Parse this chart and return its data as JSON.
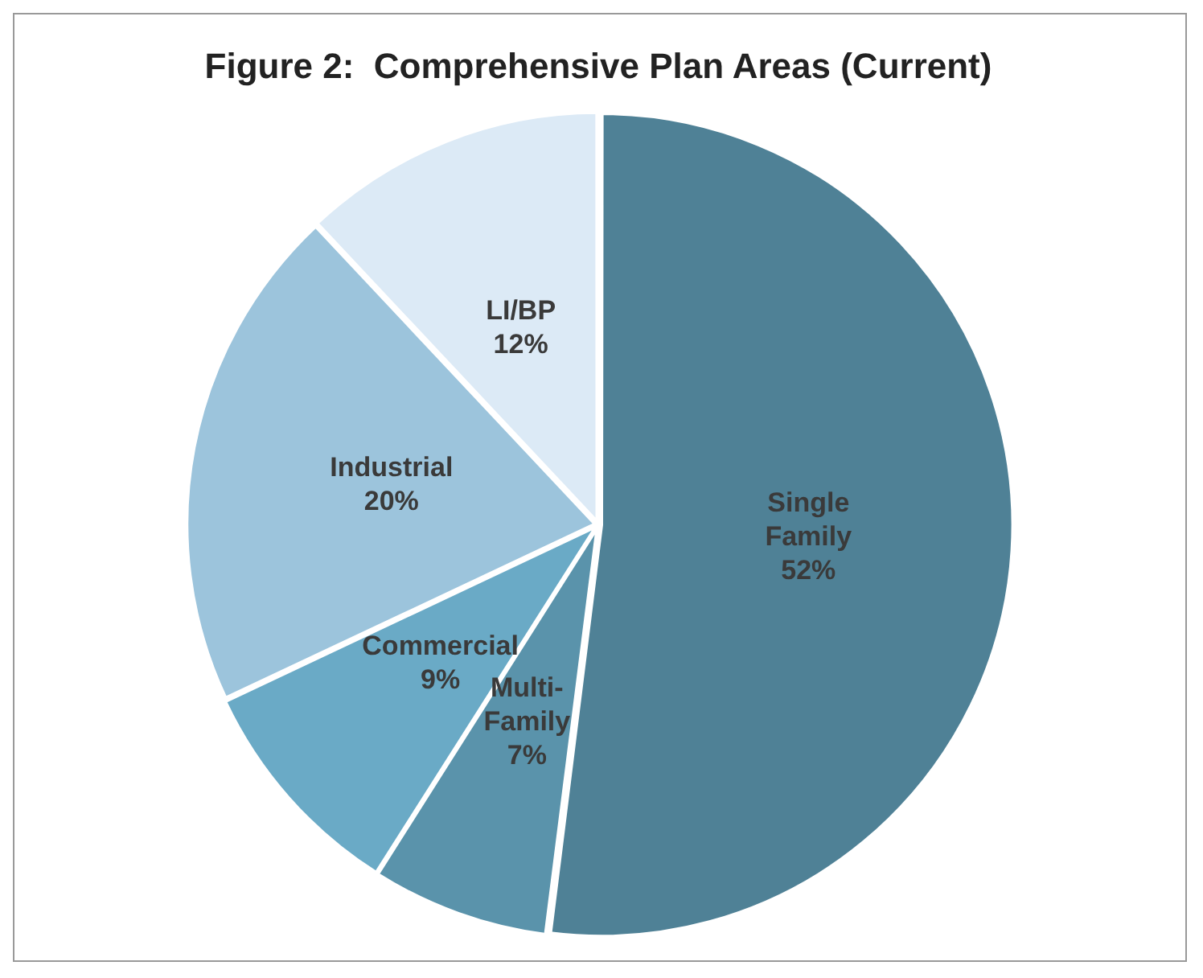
{
  "chart_data": {
    "type": "pie",
    "title": "Figure 2:  Comprehensive Plan Areas (Current)",
    "categories": [
      "Single Family",
      "Multi-Family",
      "Commercial",
      "Industrial",
      "LI/BP"
    ],
    "values": [
      52,
      7,
      9,
      20,
      12
    ],
    "value_labels": [
      "52%",
      "7%",
      "9%",
      "20%",
      "12%"
    ],
    "colors": [
      "#4f8196",
      "#5a93ab",
      "#6aaac6",
      "#9cc4dc",
      "#dceaf6"
    ],
    "legend": false
  }
}
